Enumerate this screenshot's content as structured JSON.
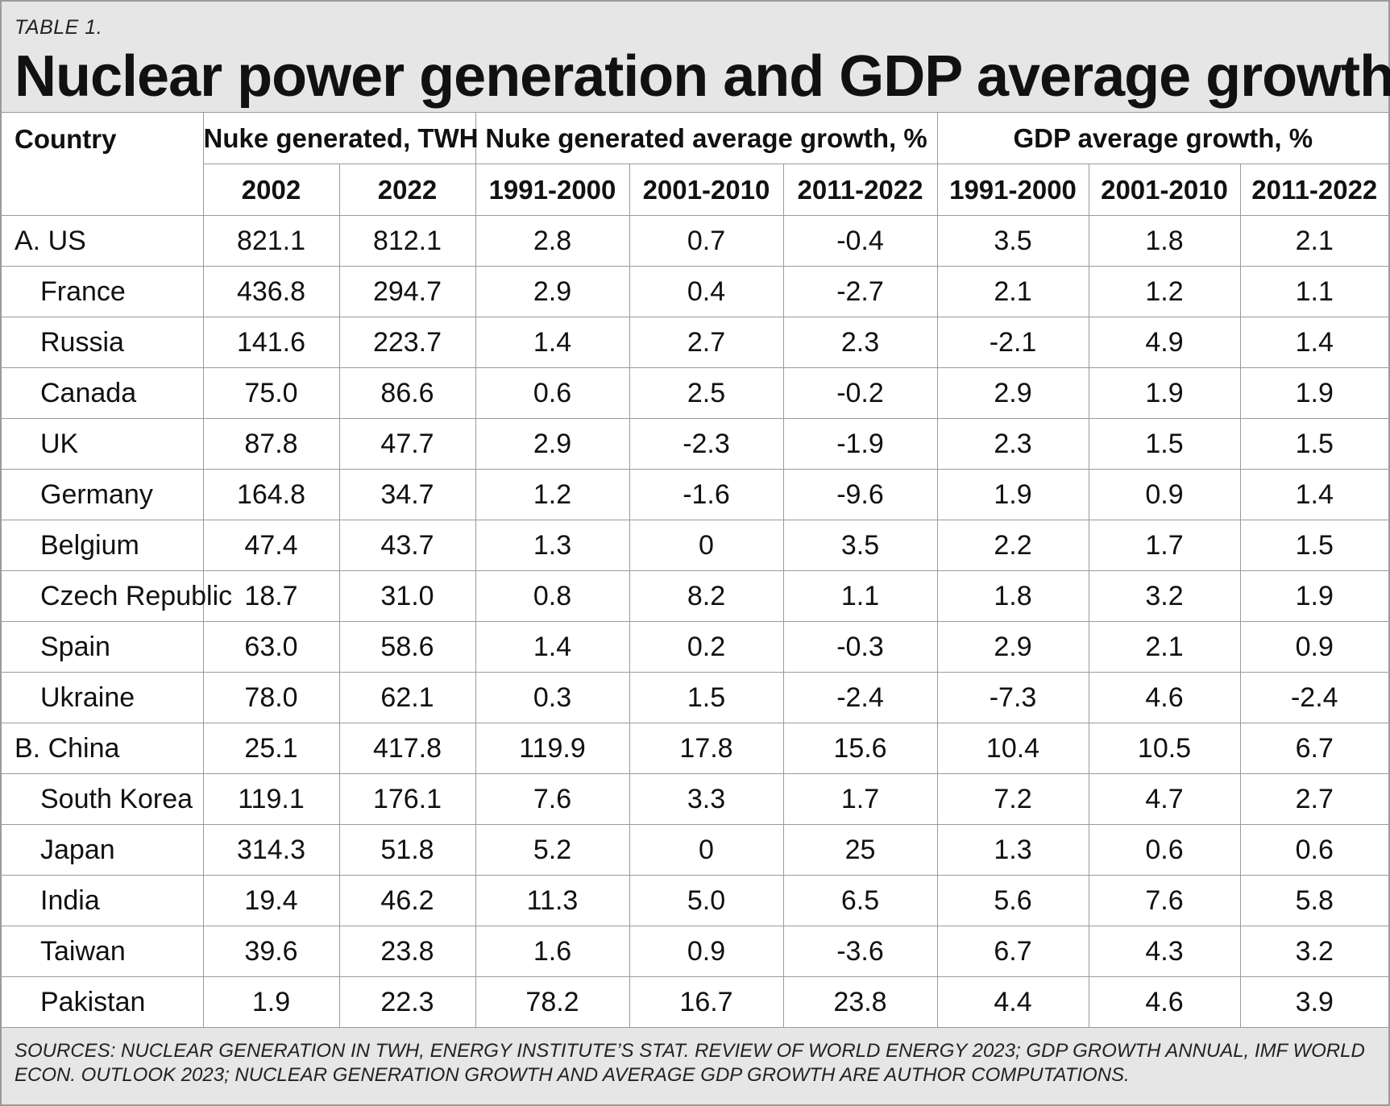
{
  "table_label": "TABLE 1.",
  "title": "Nuclear power generation and GDP average growth",
  "header": {
    "country": "Country",
    "group_nuke_generated": "Nuke generated, TWH",
    "group_nuke_growth": "Nuke generated average growth, %",
    "group_gdp_growth": "GDP average growth, %",
    "years_generated": [
      "2002",
      "2022"
    ],
    "periods_nuke_growth": [
      "1991-2000",
      "2001-2010",
      "2011-2022"
    ],
    "periods_gdp_growth": [
      "1991-2000",
      "2001-2010",
      "2011-2022"
    ]
  },
  "sources": "SOURCES: NUCLEAR GENERATION IN TWH, ENERGY INSTITUTE’S STAT. REVIEW OF WORLD ENERGY 2023; GDP GROWTH ANNUAL, IMF WORLD ECON. OUTLOOK 2023; NUCLEAR GENERATION GROWTH AND AVERAGE GDP GROWTH ARE AUTHOR COMPUTATIONS.",
  "chart_data": {
    "type": "table",
    "columns": [
      "Country",
      "Nuke generated, TWH 2002",
      "Nuke generated, TWH 2022",
      "Nuke generated average growth, % 1991-2000",
      "Nuke generated average growth, % 2001-2010",
      "Nuke generated average growth, % 2011-2022",
      "GDP average growth, % 1991-2000",
      "GDP average growth, % 2001-2010",
      "GDP average growth, % 2011-2022"
    ],
    "rows": [
      {
        "country": "A. US",
        "group": true,
        "values": [
          "821.1",
          "812.1",
          "2.8",
          "0.7",
          "-0.4",
          "3.5",
          "1.8",
          "2.1"
        ]
      },
      {
        "country": "France",
        "group": false,
        "values": [
          "436.8",
          "294.7",
          "2.9",
          "0.4",
          "-2.7",
          "2.1",
          "1.2",
          "1.1"
        ]
      },
      {
        "country": "Russia",
        "group": false,
        "values": [
          "141.6",
          "223.7",
          "1.4",
          "2.7",
          "2.3",
          "-2.1",
          "4.9",
          "1.4"
        ]
      },
      {
        "country": "Canada",
        "group": false,
        "values": [
          "75.0",
          "86.6",
          "0.6",
          "2.5",
          "-0.2",
          "2.9",
          "1.9",
          "1.9"
        ]
      },
      {
        "country": "UK",
        "group": false,
        "values": [
          "87.8",
          "47.7",
          "2.9",
          "-2.3",
          "-1.9",
          "2.3",
          "1.5",
          "1.5"
        ]
      },
      {
        "country": "Germany",
        "group": false,
        "values": [
          "164.8",
          "34.7",
          "1.2",
          "-1.6",
          "-9.6",
          "1.9",
          "0.9",
          "1.4"
        ]
      },
      {
        "country": "Belgium",
        "group": false,
        "values": [
          "47.4",
          "43.7",
          "1.3",
          "0",
          "3.5",
          "2.2",
          "1.7",
          "1.5"
        ]
      },
      {
        "country": "Czech Republic",
        "group": false,
        "values": [
          "18.7",
          "31.0",
          "0.8",
          "8.2",
          "1.1",
          "1.8",
          "3.2",
          "1.9"
        ]
      },
      {
        "country": "Spain",
        "group": false,
        "values": [
          "63.0",
          "58.6",
          "1.4",
          "0.2",
          "-0.3",
          "2.9",
          "2.1",
          "0.9"
        ]
      },
      {
        "country": "Ukraine",
        "group": false,
        "values": [
          "78.0",
          "62.1",
          "0.3",
          "1.5",
          "-2.4",
          "-7.3",
          "4.6",
          "-2.4"
        ]
      },
      {
        "country": "B. China",
        "group": true,
        "values": [
          "25.1",
          "417.8",
          "119.9",
          "17.8",
          "15.6",
          "10.4",
          "10.5",
          "6.7"
        ]
      },
      {
        "country": "South Korea",
        "group": false,
        "values": [
          "119.1",
          "176.1",
          "7.6",
          "3.3",
          "1.7",
          "7.2",
          "4.7",
          "2.7"
        ]
      },
      {
        "country": "Japan",
        "group": false,
        "values": [
          "314.3",
          "51.8",
          "5.2",
          "0",
          "25",
          "1.3",
          "0.6",
          "0.6"
        ]
      },
      {
        "country": "India",
        "group": false,
        "values": [
          "19.4",
          "46.2",
          "11.3",
          "5.0",
          "6.5",
          "5.6",
          "7.6",
          "5.8"
        ]
      },
      {
        "country": "Taiwan",
        "group": false,
        "values": [
          "39.6",
          "23.8",
          "1.6",
          "0.9",
          "-3.6",
          "6.7",
          "4.3",
          "3.2"
        ]
      },
      {
        "country": "Pakistan",
        "group": false,
        "values": [
          "1.9",
          "22.3",
          "78.2",
          "16.7",
          "23.8",
          "4.4",
          "4.6",
          "3.9"
        ]
      }
    ]
  }
}
